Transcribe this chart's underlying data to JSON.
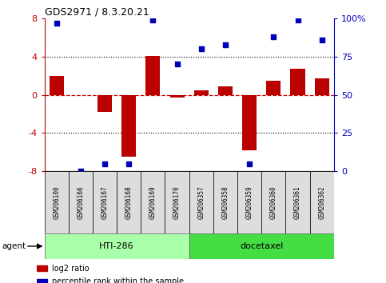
{
  "title": "GDS2971 / 8.3.20.21",
  "samples": [
    "GSM206100",
    "GSM206166",
    "GSM206167",
    "GSM206168",
    "GSM206169",
    "GSM206170",
    "GSM206357",
    "GSM206358",
    "GSM206359",
    "GSM206360",
    "GSM206361",
    "GSM206362"
  ],
  "log2_ratio": [
    2.0,
    0.0,
    -1.8,
    -6.5,
    4.1,
    -0.3,
    0.5,
    0.9,
    -5.8,
    1.5,
    2.7,
    1.7
  ],
  "percentile": [
    97,
    0,
    5,
    5,
    99,
    70,
    80,
    83,
    5,
    88,
    99,
    86
  ],
  "groups": [
    {
      "label": "HTI-286",
      "start": 0,
      "end": 5,
      "color": "#aaffaa"
    },
    {
      "label": "docetaxel",
      "start": 6,
      "end": 11,
      "color": "#44dd44"
    }
  ],
  "ylim": [
    -8,
    8
  ],
  "yticks_left": [
    -8,
    -4,
    0,
    4,
    8
  ],
  "yticks_right": [
    0,
    25,
    50,
    75,
    100
  ],
  "bar_color": "#BB0000",
  "dot_color": "#0000BB",
  "dashed_line_color": "#CC0000",
  "tick_label_color_left": "#BB0000",
  "tick_label_color_right": "#0000BB",
  "legend_red_label": "log2 ratio",
  "legend_blue_label": "percentile rank within the sample",
  "agent_label": "agent",
  "sample_box_color": "#dddddd"
}
